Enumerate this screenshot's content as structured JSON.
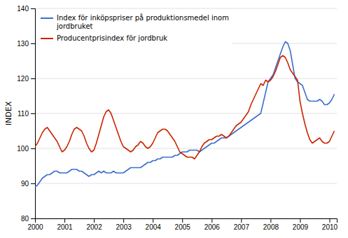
{
  "chart_data": {
    "type": "line",
    "ylabel": "INDEX",
    "xlim": [
      2000.0,
      2010.25
    ],
    "ylim": [
      80,
      140
    ],
    "xticks": [
      2000,
      2001,
      2002,
      2003,
      2004,
      2005,
      2006,
      2007,
      2008,
      2009,
      2010
    ],
    "yticks": [
      80,
      90,
      100,
      110,
      120,
      130,
      140
    ],
    "grid": "y",
    "legend": "upper left",
    "x": [
      2000.0,
      2000.083,
      2000.167,
      2000.25,
      2000.333,
      2000.417,
      2000.5,
      2000.583,
      2000.667,
      2000.75,
      2000.833,
      2000.917,
      2001.0,
      2001.083,
      2001.167,
      2001.25,
      2001.333,
      2001.417,
      2001.5,
      2001.583,
      2001.667,
      2001.75,
      2001.833,
      2001.917,
      2002.0,
      2002.083,
      2002.167,
      2002.25,
      2002.333,
      2002.417,
      2002.5,
      2002.583,
      2002.667,
      2002.75,
      2002.833,
      2002.917,
      2003.0,
      2003.083,
      2003.167,
      2003.25,
      2003.333,
      2003.417,
      2003.5,
      2003.583,
      2003.667,
      2003.75,
      2003.833,
      2003.917,
      2004.0,
      2004.083,
      2004.167,
      2004.25,
      2004.333,
      2004.417,
      2004.5,
      2004.583,
      2004.667,
      2004.75,
      2004.833,
      2004.917,
      2005.0,
      2005.083,
      2005.167,
      2005.25,
      2005.333,
      2005.417,
      2005.5,
      2005.583,
      2005.667,
      2005.75,
      2005.833,
      2005.917,
      2006.0,
      2006.083,
      2006.167,
      2006.25,
      2006.333,
      2006.417,
      2006.5,
      2006.583,
      2006.667,
      2006.75,
      2006.833,
      2006.917,
      2007.0,
      2007.083,
      2007.167,
      2007.25,
      2007.333,
      2007.417,
      2007.5,
      2007.583,
      2007.667,
      2007.75,
      2007.833,
      2007.917,
      2008.0,
      2008.083,
      2008.167,
      2008.25,
      2008.333,
      2008.417,
      2008.5,
      2008.583,
      2008.667,
      2008.75,
      2008.833,
      2008.917,
      2009.0,
      2009.083,
      2009.167,
      2009.25,
      2009.333,
      2009.417,
      2009.5,
      2009.583,
      2009.667,
      2009.75,
      2009.833,
      2009.917,
      2010.0,
      2010.083,
      2010.167
    ],
    "series": [
      {
        "name": "Index för inköpspriser på produktionsmedel inom\njordbruket",
        "color": "#3a6fcc",
        "values": [
          89.0,
          89.5,
          90.5,
          91.5,
          92.0,
          92.5,
          92.5,
          93.0,
          93.5,
          93.5,
          93.0,
          93.0,
          93.0,
          93.0,
          93.5,
          94.0,
          94.0,
          94.0,
          93.5,
          93.5,
          93.0,
          92.5,
          92.0,
          92.5,
          92.5,
          93.0,
          93.5,
          93.0,
          93.5,
          93.0,
          93.0,
          93.0,
          93.5,
          93.0,
          93.0,
          93.0,
          93.0,
          93.5,
          94.0,
          94.5,
          94.5,
          94.5,
          94.5,
          94.5,
          95.0,
          95.5,
          96.0,
          96.0,
          96.5,
          96.5,
          97.0,
          97.0,
          97.5,
          97.5,
          97.5,
          97.5,
          97.5,
          98.0,
          98.0,
          98.5,
          99.0,
          99.0,
          99.0,
          99.5,
          99.5,
          99.5,
          99.5,
          99.0,
          99.5,
          100.0,
          100.5,
          101.0,
          101.5,
          101.5,
          102.0,
          102.5,
          103.0,
          103.0,
          103.0,
          103.5,
          104.0,
          104.5,
          105.0,
          105.5,
          106.0,
          106.5,
          107.0,
          107.5,
          108.0,
          108.5,
          109.0,
          109.5,
          110.0,
          113.0,
          116.0,
          119.0,
          120.0,
          121.0,
          123.0,
          125.0,
          127.0,
          129.0,
          130.5,
          130.0,
          128.0,
          124.0,
          120.0,
          119.0,
          118.5,
          118.0,
          116.0,
          114.0,
          113.5,
          113.5,
          113.5,
          113.5,
          114.0,
          113.5,
          112.5,
          112.5,
          113.0,
          114.0,
          115.5
        ]
      },
      {
        "name": "Producentprisindex för jordbruk",
        "color": "#cc2200",
        "values": [
          100.5,
          101.5,
          103.0,
          104.5,
          105.5,
          106.0,
          105.0,
          104.0,
          103.0,
          102.0,
          100.5,
          99.0,
          99.5,
          100.5,
          102.0,
          104.0,
          105.5,
          106.0,
          105.5,
          105.0,
          103.5,
          101.5,
          100.0,
          99.0,
          99.5,
          101.5,
          104.0,
          106.5,
          109.0,
          110.5,
          111.0,
          110.0,
          108.0,
          106.0,
          104.0,
          102.0,
          100.5,
          100.0,
          99.5,
          99.0,
          99.5,
          100.5,
          101.0,
          102.0,
          101.5,
          100.5,
          100.0,
          100.5,
          101.5,
          103.0,
          104.5,
          105.0,
          105.5,
          105.5,
          105.0,
          104.0,
          103.0,
          102.0,
          100.5,
          99.0,
          98.5,
          98.0,
          97.5,
          97.5,
          97.5,
          97.0,
          98.0,
          99.0,
          100.5,
          101.5,
          102.0,
          102.5,
          102.5,
          103.0,
          103.5,
          103.5,
          104.0,
          103.5,
          103.0,
          103.5,
          104.5,
          105.5,
          106.5,
          107.0,
          107.5,
          108.5,
          109.5,
          110.5,
          112.5,
          114.0,
          115.5,
          117.0,
          118.5,
          118.0,
          119.5,
          119.0,
          119.5,
          120.5,
          122.0,
          124.0,
          126.0,
          126.5,
          126.0,
          124.5,
          122.5,
          121.5,
          120.5,
          119.5,
          113.5,
          110.0,
          107.0,
          104.5,
          102.5,
          101.5,
          102.0,
          102.5,
          103.0,
          102.0,
          101.5,
          101.5,
          102.0,
          103.5,
          105.0
        ]
      }
    ]
  }
}
